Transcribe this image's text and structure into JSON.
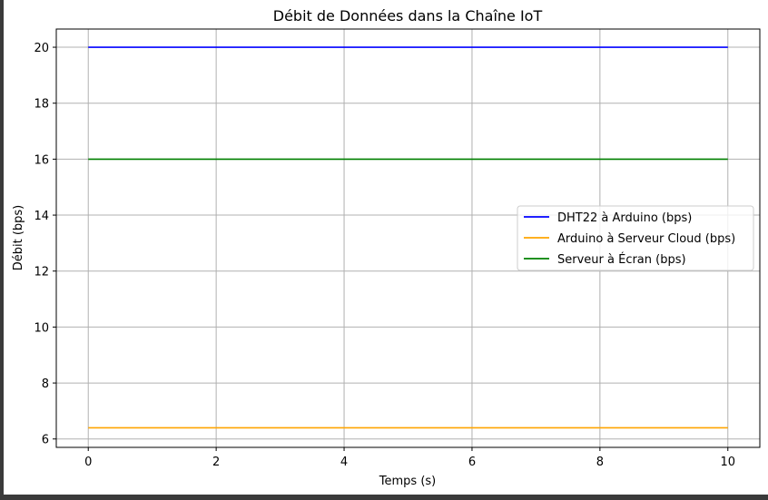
{
  "chart_data": {
    "type": "line",
    "title": "Débit de Données dans la Chaîne IoT",
    "xlabel": "Temps (s)",
    "ylabel": "Débit (bps)",
    "xlim": [
      -0.5,
      10.5
    ],
    "ylim": [
      5.7,
      20.65
    ],
    "xticks": [
      0,
      2,
      4,
      6,
      8,
      10
    ],
    "yticks": [
      6,
      8,
      10,
      12,
      14,
      16,
      18,
      20
    ],
    "grid": true,
    "legend_position": "center-right",
    "series": [
      {
        "name": "DHT22 à Arduino (bps)",
        "color": "#0000ff",
        "x": [
          0,
          10
        ],
        "values": [
          20,
          20
        ]
      },
      {
        "name": "Arduino à Serveur Cloud (bps)",
        "color": "#ffa500",
        "x": [
          0,
          10
        ],
        "values": [
          6.4,
          6.4
        ]
      },
      {
        "name": "Serveur à Écran (bps)",
        "color": "#008000",
        "x": [
          0,
          10
        ],
        "values": [
          16,
          16
        ]
      }
    ]
  }
}
